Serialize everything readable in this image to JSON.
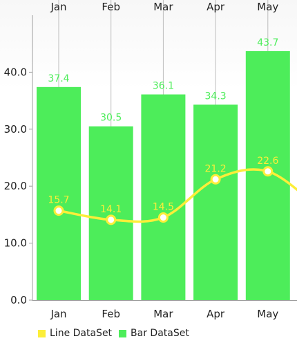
{
  "chart_data": {
    "type": "bar",
    "categories": [
      "Jan",
      "Feb",
      "Mar",
      "Apr",
      "May"
    ],
    "ylim": [
      0,
      50
    ],
    "y_ticks": [
      0,
      10,
      20,
      30,
      40
    ],
    "y_tick_labels": [
      "0.0",
      "10.0",
      "20.0",
      "30.0",
      "40.0"
    ],
    "grid": "vertical lines at categories",
    "series": [
      {
        "name": "Bar DataSet",
        "type": "bar",
        "color": "#4ded5a",
        "values": [
          37.4,
          30.5,
          36.1,
          34.3,
          43.7
        ],
        "labels": [
          "37.4",
          "30.5",
          "36.1",
          "34.3",
          "43.7"
        ]
      },
      {
        "name": "Line DataSet",
        "type": "line",
        "color": "#fcee39",
        "values": [
          15.7,
          14.1,
          14.5,
          21.2,
          22.6
        ],
        "labels": [
          "15.7",
          "14.1",
          "14.5",
          "21.2",
          "22.6"
        ]
      }
    ],
    "legend_position": "bottom-left"
  }
}
